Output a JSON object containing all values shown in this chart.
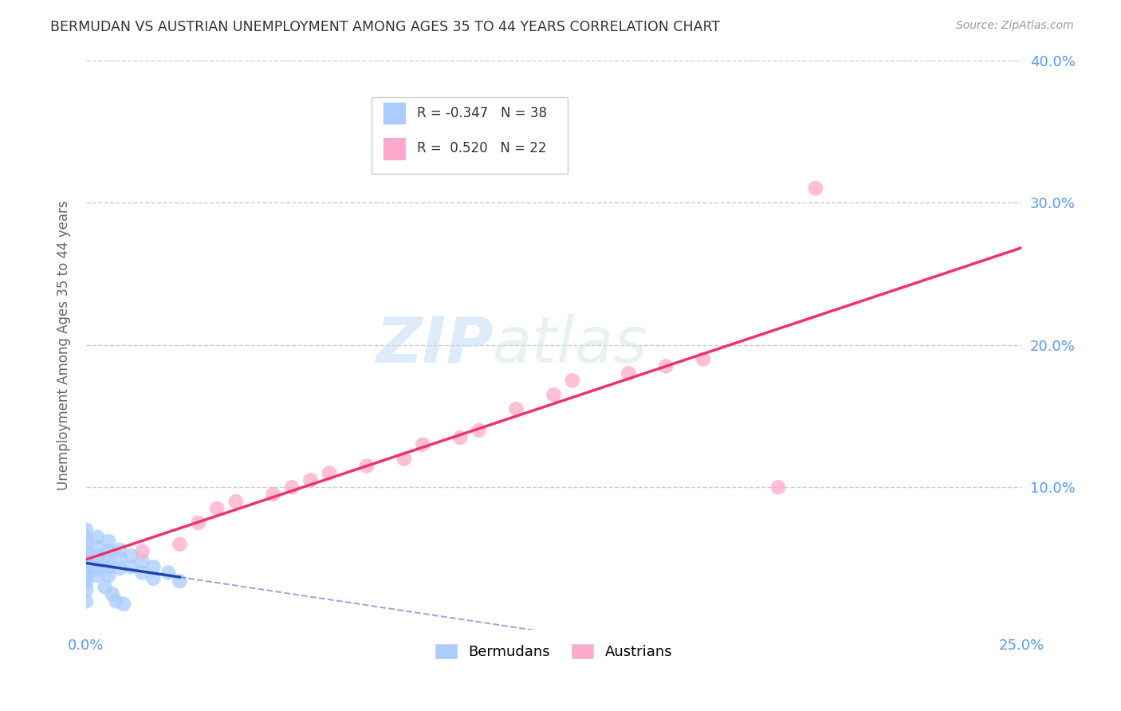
{
  "title": "BERMUDAN VS AUSTRIAN UNEMPLOYMENT AMONG AGES 35 TO 44 YEARS CORRELATION CHART",
  "source": "Source: ZipAtlas.com",
  "ylabel": "Unemployment Among Ages 35 to 44 years",
  "xlim": [
    0.0,
    0.25
  ],
  "ylim": [
    0.0,
    0.4
  ],
  "bermudans_x": [
    0.0,
    0.0,
    0.0,
    0.0,
    0.0,
    0.0,
    0.0,
    0.0,
    0.0,
    0.0,
    0.0,
    0.0,
    0.003,
    0.003,
    0.003,
    0.003,
    0.003,
    0.003,
    0.006,
    0.006,
    0.006,
    0.006,
    0.006,
    0.009,
    0.009,
    0.009,
    0.012,
    0.012,
    0.015,
    0.015,
    0.018,
    0.018,
    0.022,
    0.025,
    0.005,
    0.007,
    0.008,
    0.01
  ],
  "bermudans_y": [
    0.07,
    0.065,
    0.06,
    0.055,
    0.05,
    0.047,
    0.044,
    0.04,
    0.037,
    0.033,
    0.028,
    0.02,
    0.065,
    0.058,
    0.052,
    0.048,
    0.043,
    0.038,
    0.062,
    0.055,
    0.049,
    0.044,
    0.038,
    0.056,
    0.05,
    0.043,
    0.052,
    0.044,
    0.048,
    0.04,
    0.044,
    0.036,
    0.04,
    0.034,
    0.03,
    0.025,
    0.02,
    0.018
  ],
  "austrians_x": [
    0.015,
    0.025,
    0.03,
    0.035,
    0.04,
    0.05,
    0.055,
    0.06,
    0.065,
    0.075,
    0.085,
    0.09,
    0.1,
    0.105,
    0.115,
    0.125,
    0.13,
    0.145,
    0.155,
    0.165,
    0.185,
    0.195
  ],
  "austrians_y": [
    0.055,
    0.06,
    0.075,
    0.085,
    0.09,
    0.095,
    0.1,
    0.105,
    0.11,
    0.115,
    0.12,
    0.13,
    0.135,
    0.14,
    0.155,
    0.165,
    0.175,
    0.18,
    0.185,
    0.19,
    0.1,
    0.31
  ],
  "bermudan_color": "#aaccff",
  "austrian_color": "#ffaacc",
  "bermudan_line_color": "#2244aa",
  "austrian_line_color": "#ee3366",
  "bermudan_R": -0.347,
  "bermudan_N": 38,
  "austrian_R": 0.52,
  "austrian_N": 22,
  "background_color": "#ffffff",
  "grid_color": "#cccccc",
  "tick_color": "#5599ff",
  "label_color": "#888888"
}
